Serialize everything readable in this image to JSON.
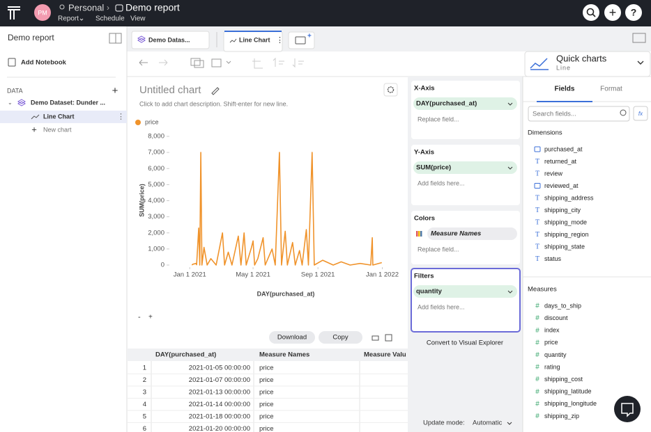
{
  "header": {
    "avatar": "PM",
    "workspace": "Personal",
    "title": "Demo report",
    "menu": [
      "Report",
      "Schedule",
      "View"
    ]
  },
  "sidebar": {
    "title": "Demo report",
    "add_notebook": "Add Notebook",
    "section": "DATA",
    "dataset": "Demo Dataset: Dunder ...",
    "items": [
      "Line Chart",
      "New chart"
    ]
  },
  "tabs": [
    "Demo Datas...",
    "Line Chart"
  ],
  "quick_charts": {
    "title": "Quick charts",
    "subtitle": "Line"
  },
  "chart_header": {
    "title": "Untitled chart",
    "description": "Click to add chart description. Shift-enter for new line."
  },
  "chart_data": {
    "type": "line",
    "x_label": "DAY(purchased_at)",
    "y_label": "SUM(price)",
    "grid": false,
    "x": [
      "2021-01-05",
      "2021-01-07",
      "2021-01-13",
      "2021-01-14",
      "2021-01-18",
      "2021-01-20",
      "2021-01-22",
      "2021-01-24",
      "2021-01-28",
      "2021-02-03",
      "2021-02-10",
      "2021-02-20",
      "2021-03-04",
      "2021-03-08",
      "2021-03-15",
      "2021-03-22",
      "2021-04-03",
      "2021-04-08",
      "2021-04-14",
      "2021-04-18",
      "2021-04-28",
      "2021-05-01",
      "2021-05-04",
      "2021-05-10",
      "2021-05-20",
      "2021-05-24",
      "2021-06-06",
      "2021-06-12",
      "2021-06-20",
      "2021-06-24",
      "2021-07-01",
      "2021-07-05",
      "2021-07-15",
      "2021-07-20",
      "2021-07-28",
      "2021-08-02",
      "2021-08-10",
      "2021-08-14",
      "2021-08-21",
      "2021-08-25",
      "2021-09-10",
      "2021-09-30",
      "2021-10-15",
      "2021-11-01",
      "2021-11-20",
      "2021-12-10",
      "2021-12-13",
      "2021-12-14",
      "2021-12-31"
    ],
    "series": [
      {
        "name": "price",
        "color": "#f0932b",
        "values": [
          0,
          50,
          100,
          20,
          2300,
          0,
          7000,
          0,
          1100,
          0,
          400,
          0,
          2000,
          0,
          800,
          0,
          1800,
          0,
          2000,
          0,
          1100,
          1500,
          0,
          400,
          1700,
          0,
          1000,
          0,
          7000,
          0,
          2100,
          0,
          1400,
          0,
          900,
          0,
          2200,
          0,
          7000,
          0,
          300,
          0,
          200,
          0,
          100,
          0,
          1700,
          0,
          150
        ]
      }
    ],
    "xlim": [
      "2020-11-26",
      "2022-02-05"
    ],
    "xticks": [
      {
        "value": "2021-01-01",
        "label": "Jan 1 2021"
      },
      {
        "value": "2021-05-01",
        "label": "May 1 2021"
      },
      {
        "value": "2021-09-01",
        "label": "Sep 1 2021"
      },
      {
        "value": "2022-01-01",
        "label": "Jan 1 2022"
      }
    ],
    "ylim": [
      0,
      8000
    ],
    "yticks": [
      0,
      {
        "value": 1000,
        "label": "1,000"
      },
      {
        "value": 2000,
        "label": "2,000"
      },
      {
        "value": 3000,
        "label": "3,000"
      },
      {
        "value": 4000,
        "label": "4,000"
      },
      {
        "value": 5000,
        "label": "5,000"
      },
      {
        "value": 6000,
        "label": "6,000"
      },
      {
        "value": 7000,
        "label": "7,000"
      },
      {
        "value": 8000,
        "label": "8,000"
      }
    ]
  },
  "chart_actions": [
    "Download",
    "Copy"
  ],
  "table": {
    "columns": [
      "DAY(purchased_at)",
      "Measure Names",
      "Measure Valu"
    ],
    "rows": [
      [
        1,
        "2021-01-05 00:00:00",
        "price"
      ],
      [
        2,
        "2021-01-07 00:00:00",
        "price"
      ],
      [
        3,
        "2021-01-13 00:00:00",
        "price"
      ],
      [
        4,
        "2021-01-14 00:00:00",
        "price"
      ],
      [
        5,
        "2021-01-18 00:00:00",
        "price"
      ],
      [
        6,
        "2021-01-20 00:00:00",
        "price"
      ]
    ]
  },
  "shelves": [
    {
      "title": "X-Axis",
      "field": "DAY(purchased_at)",
      "placeholder": "Replace field..."
    },
    {
      "title": "Y-Axis",
      "field": "SUM(price)",
      "placeholder": "Add fields here..."
    },
    {
      "title": "Colors",
      "field": "Measure Names",
      "placeholder": "Replace field..."
    },
    {
      "title": "Filters",
      "field": "quantity",
      "placeholder": "Add fields here..."
    }
  ],
  "convert": "Convert to Visual Explorer",
  "update_mode": {
    "label": "Update mode:",
    "value": "Automatic"
  },
  "fields_panel": {
    "tabs": [
      "Fields",
      "Format"
    ],
    "search": "Search fields...",
    "dimensions_title": "Dimensions",
    "dimensions": [
      {
        "name": "purchased_at",
        "kind": "date"
      },
      {
        "name": "returned_at",
        "kind": "text"
      },
      {
        "name": "review",
        "kind": "text"
      },
      {
        "name": "reviewed_at",
        "kind": "date"
      },
      {
        "name": "shipping_address",
        "kind": "text"
      },
      {
        "name": "shipping_city",
        "kind": "text"
      },
      {
        "name": "shipping_mode",
        "kind": "text"
      },
      {
        "name": "shipping_region",
        "kind": "text"
      },
      {
        "name": "shipping_state",
        "kind": "text"
      },
      {
        "name": "status",
        "kind": "text"
      }
    ],
    "measures_title": "Measures",
    "measures": [
      "days_to_ship",
      "discount",
      "index",
      "price",
      "quantity",
      "rating",
      "shipping_cost",
      "shipping_latitude",
      "shipping_longitude",
      "shipping_zip"
    ]
  }
}
